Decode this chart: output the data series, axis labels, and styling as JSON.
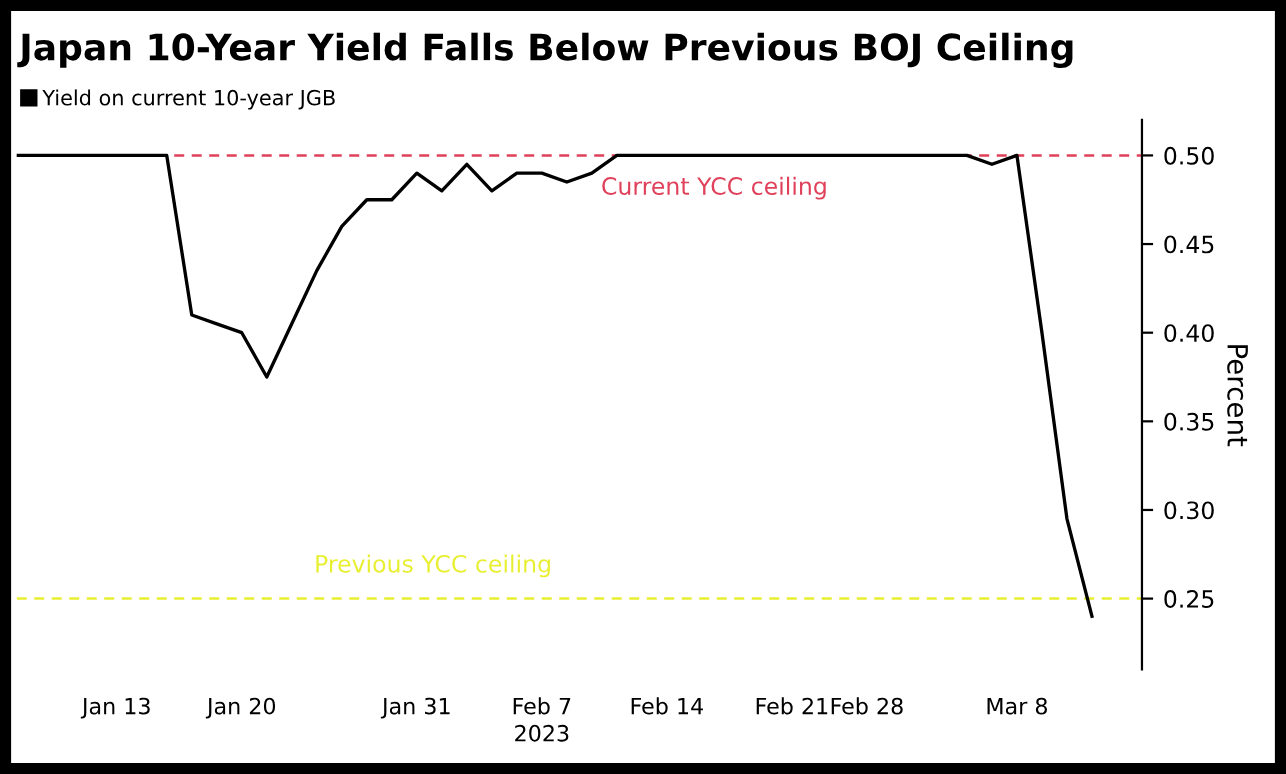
{
  "chart_data": {
    "type": "line",
    "title": "Japan 10-Year Yield Falls Below Previous BOJ Ceiling",
    "xlabel": "2023",
    "ylabel": "Percent",
    "categories": [
      null,
      null,
      null,
      null,
      "Jan 13",
      null,
      null,
      null,
      null,
      "Jan 20",
      null,
      null,
      null,
      null,
      null,
      null,
      "Jan 31",
      null,
      null,
      null,
      null,
      "Feb 7",
      null,
      null,
      null,
      null,
      "Feb 14",
      null,
      null,
      null,
      null,
      "Feb 21",
      null,
      null,
      "Feb 28",
      null,
      null,
      null,
      null,
      null,
      "Mar 8",
      null,
      null,
      null
    ],
    "series": [
      {
        "name": "Yield on current 10-year JGB",
        "color": "#000000",
        "values": [
          0.5,
          0.5,
          0.5,
          0.5,
          0.5,
          0.5,
          0.5,
          0.41,
          0.405,
          0.4,
          0.375,
          0.405,
          0.435,
          0.46,
          0.475,
          0.475,
          0.49,
          0.48,
          0.495,
          0.48,
          0.49,
          0.49,
          0.485,
          0.49,
          0.5,
          0.5,
          0.5,
          0.5,
          0.5,
          0.5,
          0.5,
          0.5,
          0.5,
          0.5,
          0.5,
          0.5,
          0.5,
          0.5,
          0.5,
          0.495,
          0.5,
          0.4,
          0.295,
          0.24
        ]
      }
    ],
    "ylim": [
      0.21,
      0.52
    ],
    "yticks": [
      {
        "value": 0.25,
        "label": "0.25"
      },
      {
        "value": 0.3,
        "label": "0.30"
      },
      {
        "value": 0.35,
        "label": "0.35"
      },
      {
        "value": 0.4,
        "label": "0.40"
      },
      {
        "value": 0.45,
        "label": "0.45"
      },
      {
        "value": 0.5,
        "label": "0.50"
      }
    ],
    "ref_lines": [
      {
        "axis": "y",
        "value": 0.5,
        "label": "Current YCC ceiling",
        "color": "#e0405a",
        "line_style": "dashed"
      },
      {
        "axis": "y",
        "value": 0.25,
        "label": "Previous YCC ceiling",
        "color": "#e8ef30",
        "line_style": "dashed"
      }
    ],
    "grid": false,
    "legend": "top left",
    "line_style": "solid",
    "marker": "none"
  }
}
